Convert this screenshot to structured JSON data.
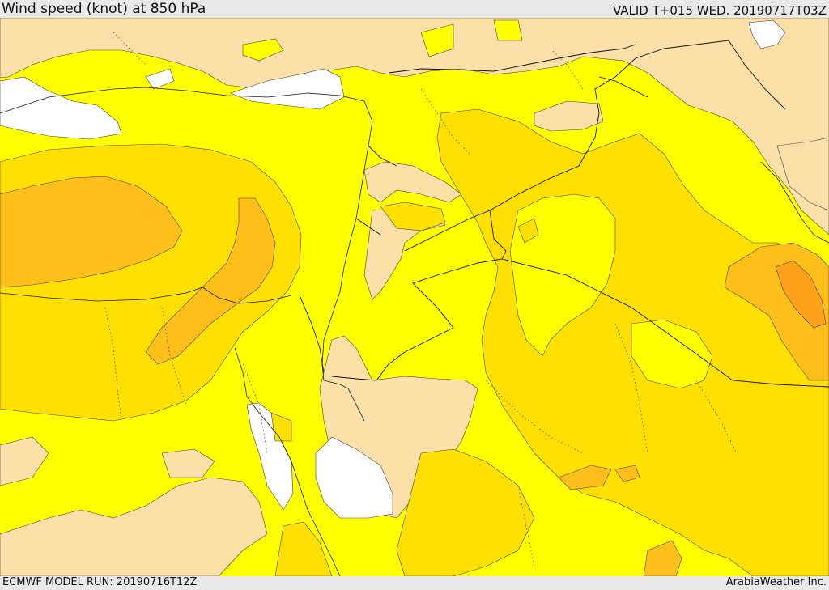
{
  "header": {
    "title": "Wind speed (knot) at 850 hPa",
    "valid": "VALID T+015 WED. 20190717T03Z"
  },
  "footer": {
    "model_run": "ECMWF MODEL RUN: 20190716T12Z",
    "credit": "ArabiaWeather Inc."
  },
  "map": {
    "variable": "wind speed",
    "level": "850 hPa",
    "units": "knot",
    "colors": {
      "calm": "#ffffff",
      "light": "#fde0a8",
      "moderate": "#ffff00",
      "fresh": "#ffe000",
      "strong": "#ffbf1a",
      "stronger": "#ffa21a",
      "coast_lines": "#1a1a1a",
      "borders": "#111111"
    }
  }
}
